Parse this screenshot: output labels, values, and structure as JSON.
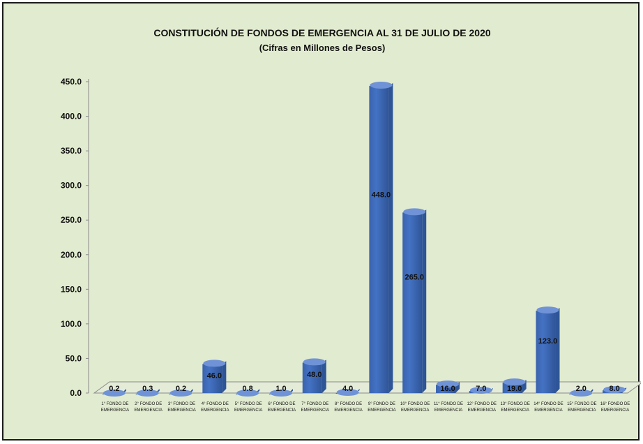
{
  "chart_data": {
    "type": "bar",
    "title": "CONSTITUCIÓN DE FONDOS DE EMERGENCIA AL 31 DE JULIO DE 2020",
    "subtitle": "(Cifras en Millones de Pesos)",
    "xlabel": "",
    "ylabel": "",
    "ylim": [
      0,
      450
    ],
    "yticks": [
      "0.0",
      "50.0",
      "100.0",
      "150.0",
      "200.0",
      "250.0",
      "300.0",
      "350.0",
      "400.0",
      "450.0"
    ],
    "grid": false,
    "legend": "none",
    "bar_color": "#4472c4",
    "categories": [
      [
        "1° FONDO DE",
        "EMERGENCIA"
      ],
      [
        "2° FONDO DE",
        "EMERGENCIA"
      ],
      [
        "3° FONDO DE",
        "EMERGENCIA"
      ],
      [
        "4° FONDO DE",
        "EMERGENCIA"
      ],
      [
        "5° FONDO DE",
        "EMERGENCIA"
      ],
      [
        "6° FONDO DE",
        "EMERGENCIA"
      ],
      [
        "7° FONDO DE",
        "EMERGENCIA"
      ],
      [
        "8° FONDO DE",
        "EMERGENCIA"
      ],
      [
        "9° FONDO DE",
        "EMERGENCIA"
      ],
      [
        "10° FONDO DE",
        "EMERGENCIA"
      ],
      [
        "11° FONDO DE",
        "EMERGENCIA"
      ],
      [
        "12° FONDO DE",
        "EMERGENCIA"
      ],
      [
        "13° FONDO DE",
        "EMERGENCIA"
      ],
      [
        "14° FONDO DE",
        "EMERGENCIA"
      ],
      [
        "15° FONDO DE",
        "EMERGENCIA"
      ],
      [
        "16° FONDO DE",
        "EMERGENCIA"
      ]
    ],
    "values": [
      0.2,
      0.3,
      0.2,
      46.0,
      0.8,
      1.0,
      48.0,
      4.0,
      448.0,
      265.0,
      16.0,
      7.0,
      19.0,
      123.0,
      2.0,
      8.0
    ],
    "data_labels": [
      "0.2",
      "0.3",
      "0.2",
      "46.0",
      "0.8",
      "1.0",
      "48.0",
      "4.0",
      "448.0",
      "265.0",
      "16.0",
      "7.0",
      "19.0",
      "123.0",
      "2.0",
      "8.0"
    ]
  }
}
